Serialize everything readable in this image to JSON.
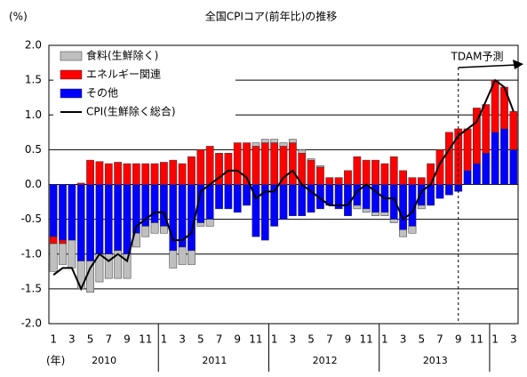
{
  "chart_data": {
    "type": "stacked-bar-line",
    "title": "全国CPIコア(前年比)の推移",
    "y_label": "(%)",
    "x_unit_label": "(年)",
    "annotation": "TDAM予測",
    "categories": [
      "1",
      null,
      "3",
      null,
      "5",
      null,
      "7",
      null,
      "9",
      null,
      "11",
      null,
      "1",
      null,
      "3",
      null,
      "5",
      null,
      "7",
      null,
      "9",
      null,
      "11",
      null,
      "1",
      null,
      "3",
      null,
      "5",
      null,
      "7",
      null,
      "9",
      null,
      "11",
      null,
      "1",
      null,
      "3",
      null,
      "5",
      null,
      "7",
      null,
      "9",
      null,
      "11",
      null,
      "1",
      null,
      "3"
    ],
    "years": [
      "2010",
      "2011",
      "2012",
      "2013"
    ],
    "series": [
      {
        "name": "食料(生鮮除く)",
        "color": "#bfbfbf",
        "kind": "bar",
        "values": [
          -0.4,
          -0.3,
          -0.4,
          -0.4,
          -0.45,
          -0.4,
          -0.35,
          -0.4,
          -0.35,
          -0.2,
          -0.15,
          -0.15,
          -0.1,
          -0.25,
          -0.25,
          -0.2,
          -0.05,
          -0.1,
          0,
          0,
          0,
          0,
          0.05,
          0.05,
          0.05,
          0.05,
          0.05,
          0.05,
          0.02,
          0.02,
          0,
          0,
          0,
          -0.05,
          -0.05,
          -0.05,
          -0.05,
          -0.05,
          -0.1,
          -0.1,
          -0.05,
          0,
          0,
          0,
          0,
          0,
          0,
          0,
          0,
          0,
          0
        ]
      },
      {
        "name": "エネルギー関連",
        "color": "#ff0000",
        "kind": "bar",
        "values": [
          -0.1,
          -0.05,
          0,
          0.02,
          0.35,
          0.33,
          0.3,
          0.32,
          0.3,
          0.3,
          0.3,
          0.3,
          0.32,
          0.35,
          0.3,
          0.4,
          0.5,
          0.55,
          0.45,
          0.45,
          0.6,
          0.6,
          0.55,
          0.6,
          0.6,
          0.55,
          0.6,
          0.45,
          0.35,
          0.25,
          0.1,
          0.1,
          0.2,
          0.4,
          0.35,
          0.35,
          0.3,
          0.4,
          0.2,
          0.1,
          0.1,
          0.3,
          0.5,
          0.75,
          0.8,
          0.6,
          0.8,
          0.7,
          0.75,
          0.6,
          0.55
        ]
      },
      {
        "name": "その他",
        "color": "#0000ff",
        "kind": "bar",
        "values": [
          -0.75,
          -0.8,
          -0.8,
          -1.1,
          -1.1,
          -1.0,
          -1.0,
          -0.95,
          -1.0,
          -0.7,
          -0.6,
          -0.55,
          -0.6,
          -0.95,
          -0.9,
          -0.95,
          -0.55,
          -0.5,
          -0.35,
          -0.35,
          -0.4,
          -0.3,
          -0.75,
          -0.8,
          -0.6,
          -0.5,
          -0.45,
          -0.45,
          -0.4,
          -0.35,
          -0.3,
          -0.35,
          -0.45,
          -0.3,
          -0.35,
          -0.4,
          -0.4,
          -0.5,
          -0.65,
          -0.6,
          -0.3,
          -0.3,
          -0.2,
          -0.15,
          -0.1,
          0.2,
          0.3,
          0.45,
          0.75,
          0.8,
          0.5
        ]
      },
      {
        "name": "CPI(生鮮除く総合)",
        "color": "#000000",
        "kind": "line",
        "values": [
          -1.3,
          -1.2,
          -1.2,
          -1.5,
          -1.2,
          -1.0,
          -1.1,
          -1.0,
          -1.1,
          -0.6,
          -0.5,
          -0.4,
          -0.4,
          -0.8,
          -0.8,
          -0.7,
          -0.1,
          0.0,
          0.1,
          0.2,
          0.2,
          0.1,
          -0.2,
          -0.1,
          -0.1,
          0.1,
          0.2,
          0.0,
          -0.1,
          -0.2,
          -0.3,
          -0.3,
          -0.3,
          -0.1,
          0.0,
          -0.1,
          -0.2,
          -0.2,
          -0.5,
          -0.4,
          -0.1,
          0.0,
          0.3,
          0.5,
          0.7,
          0.8,
          0.9,
          1.2,
          1.5,
          1.4,
          1.05
        ]
      }
    ],
    "ylim": [
      -2,
      2
    ],
    "yticks": [
      {
        "value": 2,
        "label": "2.0"
      },
      1.5,
      {
        "value": 1,
        "label": "1.0"
      },
      0.5,
      {
        "value": 0,
        "label": "0.0"
      },
      -0.5,
      {
        "value": -1,
        "label": "-1.0"
      },
      -1.5,
      {
        "value": -2,
        "label": "-2.0"
      }
    ],
    "grid": true
  }
}
